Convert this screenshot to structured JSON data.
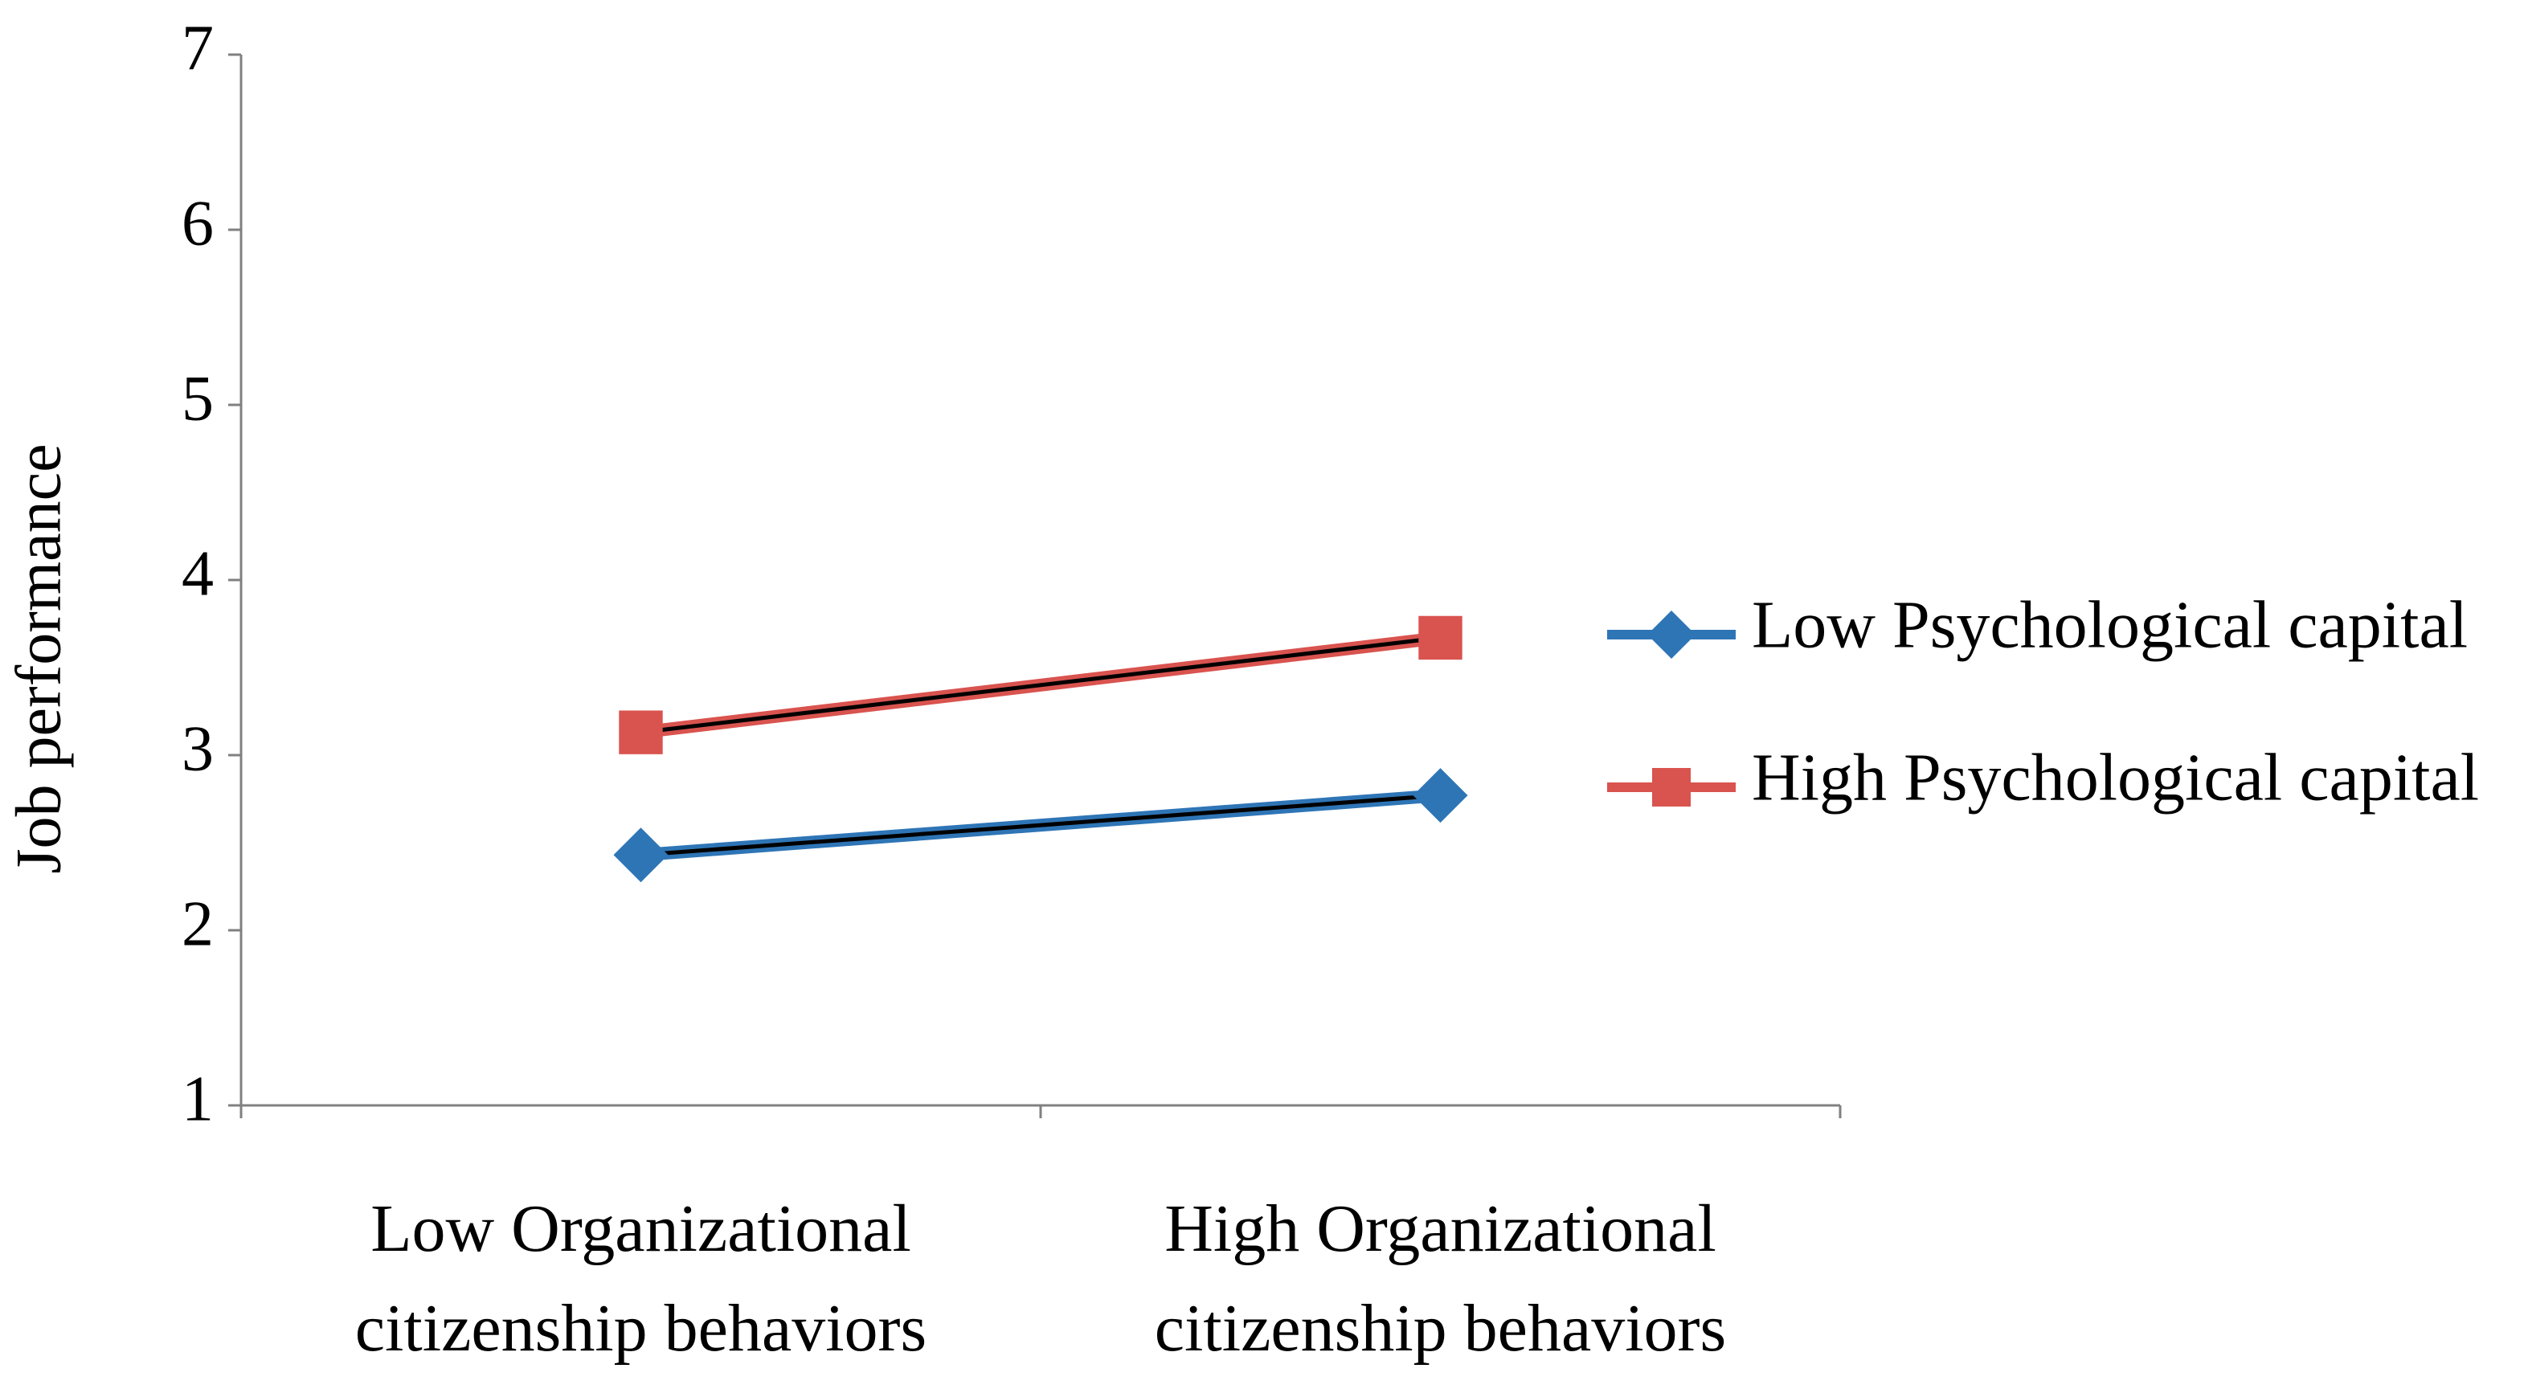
{
  "chart_data": {
    "type": "line",
    "y_label": "Job performance",
    "categories": [
      "Low Organizational citizenship behaviors",
      "High Organizational citizenship behaviors"
    ],
    "series": [
      {
        "name": "Low Psychological capital",
        "color": "#2e75b6",
        "marker": "diamond",
        "values": [
          2.43,
          2.77
        ]
      },
      {
        "name": "High Psychological capital",
        "color": "#d9534f",
        "marker": "square",
        "values": [
          3.13,
          3.67
        ]
      }
    ],
    "ylim": [
      1,
      7
    ],
    "yticks": [
      1,
      2,
      3,
      4,
      5,
      6,
      7
    ],
    "grid": false,
    "legend": "right"
  }
}
